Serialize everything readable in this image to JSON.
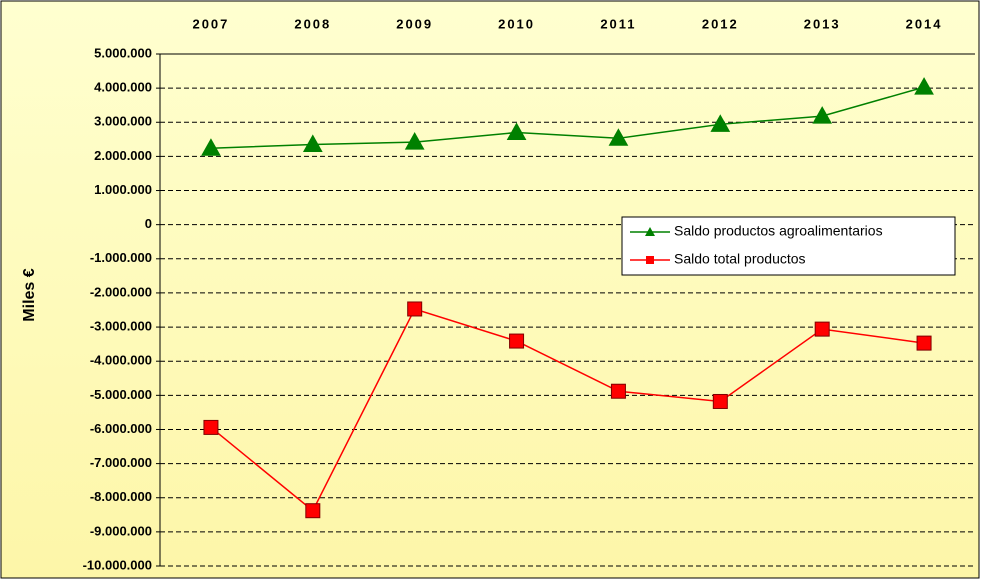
{
  "chart_data": {
    "type": "line",
    "y_label": "Miles €",
    "categories": [
      "2007",
      "2008",
      "2009",
      "2010",
      "2011",
      "2012",
      "2013",
      "2014"
    ],
    "series": [
      {
        "name": "Saldo productos agroalimentarios",
        "color": "#008000",
        "marker": "triangle",
        "values": [
          2240000,
          2350000,
          2420000,
          2700000,
          2530000,
          2940000,
          3180000,
          4030000
        ]
      },
      {
        "name": "Saldo total productos",
        "color": "#ff0000",
        "marker": "square",
        "values": [
          -5940000,
          -8380000,
          -2470000,
          -3410000,
          -4880000,
          -5180000,
          -3060000,
          -3470000
        ]
      }
    ],
    "ylim": [
      -10000000,
      5000000
    ],
    "yticks": [
      {
        "value": 5000000,
        "label": "5.000.000"
      },
      {
        "value": 4000000,
        "label": "4.000.000"
      },
      {
        "value": 3000000,
        "label": "3.000.000"
      },
      {
        "value": 2000000,
        "label": "2.000.000"
      },
      {
        "value": 1000000,
        "label": "1.000.000"
      },
      0,
      {
        "value": -1000000,
        "label": "-1.000.000"
      },
      {
        "value": -2000000,
        "label": "-2.000.000"
      },
      {
        "value": -3000000,
        "label": "-3.000.000"
      },
      {
        "value": -4000000,
        "label": "-4.000.000"
      },
      {
        "value": -5000000,
        "label": "-5.000.000"
      },
      {
        "value": -6000000,
        "label": "-6.000.000"
      },
      {
        "value": -7000000,
        "label": "-7.000.000"
      },
      {
        "value": -8000000,
        "label": "-8.000.000"
      },
      {
        "value": -9000000,
        "label": "-9.000.000"
      },
      {
        "value": -10000000,
        "label": "-10.000.000"
      }
    ],
    "grid": true,
    "legend": "right"
  }
}
